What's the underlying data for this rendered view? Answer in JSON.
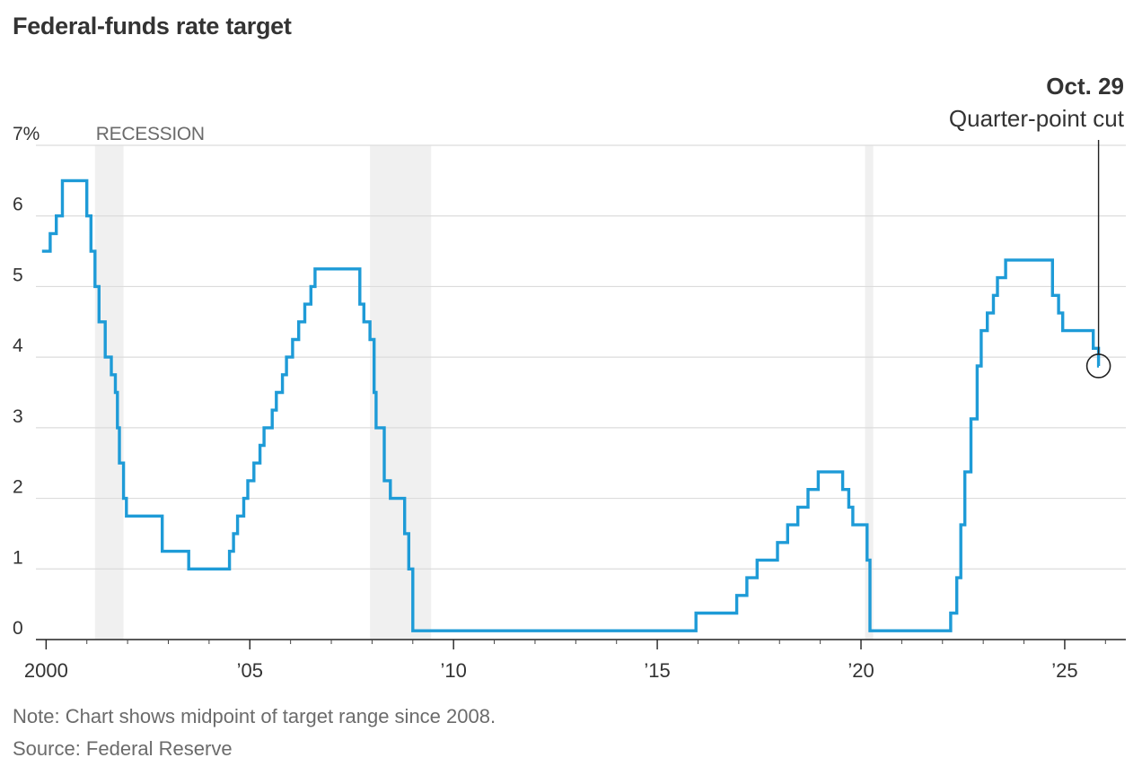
{
  "title": "Federal-funds rate target",
  "note": "Note: Chart shows midpoint of target range since 2008.",
  "source": "Source: Federal Reserve",
  "colors": {
    "line": "#1e9bd7",
    "recession": "#f0f0f0",
    "grid": "#dcdcdc",
    "text": "#333333",
    "muted": "#6b6b6b"
  },
  "chart_data": {
    "type": "line",
    "title": "Federal-funds rate target",
    "xlabel": "",
    "ylabel": "",
    "xlim": [
      1999.75,
      2026.5
    ],
    "ylim": [
      0,
      7
    ],
    "yticks": [
      0,
      1,
      2,
      3,
      4,
      5,
      6,
      7
    ],
    "ytick_labels": [
      "0",
      "1",
      "2",
      "3",
      "4",
      "5",
      "6",
      "7%"
    ],
    "xticks": [
      2000,
      2005,
      2010,
      2015,
      2020,
      2025
    ],
    "xtick_labels": [
      "2000",
      "’05",
      "’10",
      "’15",
      "’20",
      "’25"
    ],
    "grid": "horizontal",
    "recession_label": "RECESSION",
    "recessions": [
      [
        2001.2,
        2001.9
      ],
      [
        2007.95,
        2009.45
      ],
      [
        2020.1,
        2020.3
      ]
    ],
    "series": [
      {
        "step": "post",
        "points": [
          [
            1999.9,
            5.5
          ],
          [
            2000.1,
            5.75
          ],
          [
            2000.25,
            6.0
          ],
          [
            2000.4,
            6.5
          ],
          [
            2001.0,
            6.0
          ],
          [
            2001.1,
            5.5
          ],
          [
            2001.2,
            5.0
          ],
          [
            2001.3,
            4.5
          ],
          [
            2001.45,
            4.0
          ],
          [
            2001.6,
            3.75
          ],
          [
            2001.7,
            3.5
          ],
          [
            2001.75,
            3.0
          ],
          [
            2001.8,
            2.5
          ],
          [
            2001.9,
            2.0
          ],
          [
            2001.97,
            1.75
          ],
          [
            2002.85,
            1.25
          ],
          [
            2003.5,
            1.0
          ],
          [
            2004.5,
            1.25
          ],
          [
            2004.6,
            1.5
          ],
          [
            2004.7,
            1.75
          ],
          [
            2004.85,
            2.0
          ],
          [
            2004.95,
            2.25
          ],
          [
            2005.1,
            2.5
          ],
          [
            2005.25,
            2.75
          ],
          [
            2005.35,
            3.0
          ],
          [
            2005.55,
            3.25
          ],
          [
            2005.65,
            3.5
          ],
          [
            2005.8,
            3.75
          ],
          [
            2005.9,
            4.0
          ],
          [
            2006.05,
            4.25
          ],
          [
            2006.2,
            4.5
          ],
          [
            2006.35,
            4.75
          ],
          [
            2006.5,
            5.0
          ],
          [
            2006.6,
            5.25
          ],
          [
            2007.7,
            4.75
          ],
          [
            2007.8,
            4.5
          ],
          [
            2007.95,
            4.25
          ],
          [
            2008.05,
            3.5
          ],
          [
            2008.1,
            3.0
          ],
          [
            2008.3,
            2.25
          ],
          [
            2008.45,
            2.0
          ],
          [
            2008.8,
            1.5
          ],
          [
            2008.9,
            1.0
          ],
          [
            2009.0,
            0.125
          ],
          [
            2015.95,
            0.375
          ],
          [
            2016.95,
            0.625
          ],
          [
            2017.2,
            0.875
          ],
          [
            2017.45,
            1.125
          ],
          [
            2017.95,
            1.375
          ],
          [
            2018.2,
            1.625
          ],
          [
            2018.45,
            1.875
          ],
          [
            2018.7,
            2.125
          ],
          [
            2018.95,
            2.375
          ],
          [
            2019.55,
            2.125
          ],
          [
            2019.7,
            1.875
          ],
          [
            2019.8,
            1.625
          ],
          [
            2020.15,
            1.125
          ],
          [
            2020.22,
            0.125
          ],
          [
            2022.2,
            0.375
          ],
          [
            2022.35,
            0.875
          ],
          [
            2022.45,
            1.625
          ],
          [
            2022.55,
            2.375
          ],
          [
            2022.7,
            3.125
          ],
          [
            2022.85,
            3.875
          ],
          [
            2022.95,
            4.375
          ],
          [
            2023.1,
            4.625
          ],
          [
            2023.25,
            4.875
          ],
          [
            2023.35,
            5.125
          ],
          [
            2023.55,
            5.375
          ],
          [
            2024.7,
            4.875
          ],
          [
            2024.85,
            4.625
          ],
          [
            2024.95,
            4.375
          ],
          [
            2025.7,
            4.125
          ],
          [
            2025.83,
            3.875
          ],
          [
            2025.84,
            3.875
          ]
        ]
      }
    ],
    "annotation": {
      "date": "Oct. 29",
      "text": "Quarter-point cut",
      "x": 2025.83,
      "y": 3.875
    }
  }
}
